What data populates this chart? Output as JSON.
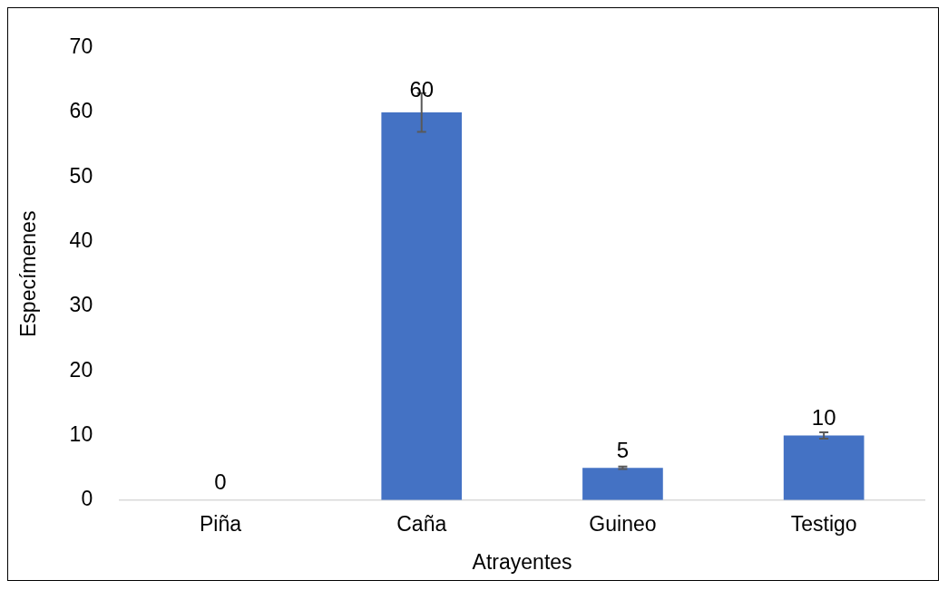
{
  "chart_data": {
    "type": "bar",
    "xlabel": "Atrayentes",
    "ylabel": "Especímenes",
    "categories": [
      "Piña",
      "Caña",
      "Guineo",
      "Testigo"
    ],
    "values": [
      0,
      60,
      5,
      10
    ],
    "errors": [
      null,
      3,
      0.2,
      0.5
    ],
    "color": "#4472c4",
    "ylim": [
      0,
      70
    ],
    "yticks": [
      0,
      10,
      20,
      30,
      40,
      50,
      60,
      70
    ],
    "grid": false,
    "legend": false,
    "data_labels": true
  }
}
